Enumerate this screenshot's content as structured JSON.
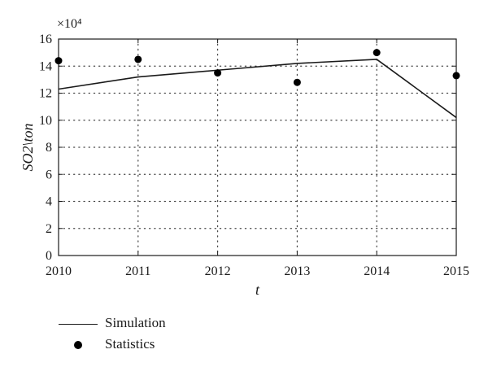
{
  "chart_data": {
    "type": "line",
    "x": [
      2010,
      2011,
      2012,
      2013,
      2014,
      2015
    ],
    "xlim": [
      2010,
      2015
    ],
    "ylim": [
      0,
      16
    ],
    "y_scale_label": "×10⁴",
    "xlabel": "t",
    "ylabel": "SO2\\ton",
    "xticks": [
      "2010",
      "2011",
      "2012",
      "2013",
      "2014",
      "2015"
    ],
    "yticks": [
      "0",
      "2",
      "4",
      "6",
      "8",
      "10",
      "12",
      "14",
      "16"
    ],
    "grid": true,
    "grid_style": "dotted",
    "legend_position": "bottom-left, outside plot",
    "series": [
      {
        "name": "Simulation",
        "style": "line",
        "color": "#1a1a1a",
        "values": [
          12.3,
          13.2,
          13.7,
          14.2,
          14.5,
          10.2
        ]
      },
      {
        "name": "Statistics",
        "style": "markers",
        "color": "#000000",
        "values": [
          14.4,
          14.5,
          13.5,
          12.8,
          15.0,
          13.3
        ]
      }
    ]
  }
}
